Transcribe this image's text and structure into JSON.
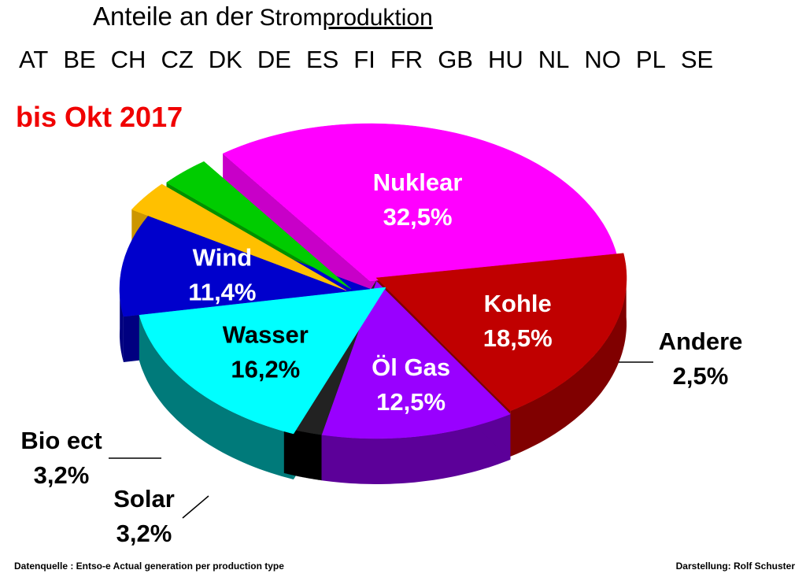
{
  "header": {
    "title_part1": "Anteile an der",
    "title_part2": "Strom",
    "title_part3": "produktion",
    "countries": [
      "AT",
      "BE",
      "CH",
      "CZ",
      "DK",
      "DE",
      "ES",
      "FI",
      "FR",
      "GB",
      "HU",
      "NL",
      "NO",
      "PL",
      "SE"
    ],
    "period": "bis Okt 2017"
  },
  "footer": {
    "source": "Datenquelle : Entso-e  Actual generation per production type",
    "author": "Darstellung: Rolf Schuster"
  },
  "chart_data": {
    "type": "pie",
    "style": "3d-exploded",
    "slices": [
      {
        "name": "Nuklear",
        "label": "32,5%",
        "value": 32.5,
        "color": "#ff00ff",
        "side_color": "#c800c8",
        "text_color": "#ffffff"
      },
      {
        "name": "Kohle",
        "label": "18,5%",
        "value": 18.5,
        "color": "#c00000",
        "side_color": "#800000",
        "text_color": "#ffffff"
      },
      {
        "name": "Öl Gas",
        "label": "12,5%",
        "value": 12.5,
        "color": "#9900ff",
        "side_color": "#5c0099",
        "text_color": "#ffffff"
      },
      {
        "name": "Andere",
        "label": "2,5%",
        "value": 2.5,
        "color": "#222222",
        "side_color": "#000000",
        "text_color": "#000000"
      },
      {
        "name": "Wasser",
        "label": "16,2%",
        "value": 16.2,
        "color": "#00ffff",
        "side_color": "#007a7a",
        "text_color": "#000000"
      },
      {
        "name": "Wind",
        "label": "11,4%",
        "value": 11.4,
        "color": "#0000cc",
        "side_color": "#000080",
        "text_color": "#ffffff"
      },
      {
        "name": "Solar",
        "label": "3,2%",
        "value": 3.2,
        "color": "#ffc000",
        "side_color": "#cc9600",
        "text_color": "#000000"
      },
      {
        "name": "Bio ect",
        "label": "3,2%",
        "value": 3.2,
        "color": "#00cc00",
        "side_color": "#009000",
        "text_color": "#000000"
      }
    ]
  }
}
